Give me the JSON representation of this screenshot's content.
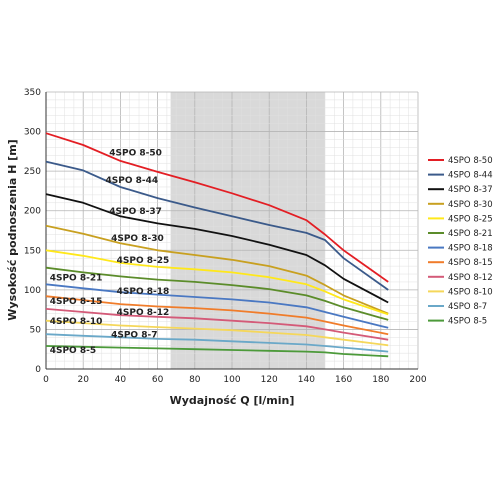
{
  "chart_data": {
    "type": "line",
    "title": "",
    "xlabel": "Wydajność Q [l/min]",
    "ylabel": "Wysokość podnoszenia H [m]",
    "xlim": [
      0,
      200
    ],
    "ylim": [
      0,
      350
    ],
    "x_ticks": [
      0,
      20,
      40,
      60,
      80,
      100,
      120,
      140,
      160,
      180,
      200
    ],
    "y_ticks": [
      0,
      50,
      100,
      150,
      200,
      250,
      300,
      350
    ],
    "x_tick_labels": [
      "0",
      "20",
      "40",
      "60",
      "80",
      "100",
      "120",
      "140",
      "160",
      "180",
      "200"
    ],
    "y_tick_labels": [
      "0",
      "50",
      "100",
      "150",
      "200",
      "250",
      "300",
      "350"
    ],
    "grid": true,
    "shaded_band": {
      "x_from": 67,
      "x_to": 150,
      "color": "#d9d9d9"
    },
    "legend_position": "right",
    "x": [
      0,
      20,
      40,
      60,
      80,
      100,
      120,
      140,
      150,
      160,
      184
    ],
    "series": [
      {
        "name": "4SPO 8-50",
        "color": "#e31e24",
        "values": [
          298,
          283,
          263,
          249,
          236,
          222,
          207,
          188,
          170,
          150,
          110
        ]
      },
      {
        "name": "4SPO 8-44",
        "color": "#3b5a8a",
        "values": [
          262,
          251,
          230,
          216,
          204,
          193,
          182,
          172,
          163,
          140,
          100
        ]
      },
      {
        "name": "4SPO 8-37",
        "color": "#111111",
        "values": [
          221,
          210,
          193,
          184,
          177,
          168,
          157,
          144,
          131,
          114,
          84
        ]
      },
      {
        "name": "4SPO 8-30",
        "color": "#c8a020",
        "values": [
          181,
          171,
          159,
          150,
          144,
          138,
          130,
          118,
          106,
          93,
          70
        ]
      },
      {
        "name": "4SPO 8-25",
        "color": "#ffe81a",
        "values": [
          150,
          143,
          134,
          129,
          126,
          122,
          116,
          107,
          98,
          88,
          69
        ]
      },
      {
        "name": "4SPO 8-21",
        "color": "#5b8c2a",
        "values": [
          128,
          122,
          117,
          113,
          110,
          106,
          101,
          93,
          86,
          78,
          62
        ]
      },
      {
        "name": "4SPO 8-18",
        "color": "#4a78c2",
        "values": [
          107,
          102,
          97,
          94,
          91,
          88,
          84,
          78,
          72,
          66,
          52
        ]
      },
      {
        "name": "4SPO 8-15",
        "color": "#f07c2a",
        "values": [
          92,
          87,
          82,
          79,
          77,
          74,
          70,
          65,
          60,
          55,
          44
        ]
      },
      {
        "name": "4SPO 8-12",
        "color": "#d45a78",
        "values": [
          76,
          72,
          68,
          66,
          64,
          61,
          58,
          54,
          50,
          46,
          37
        ]
      },
      {
        "name": "4SPO 8-10",
        "color": "#f5d75a",
        "values": [
          61,
          58,
          55,
          53,
          51,
          49,
          46,
          43,
          40,
          37,
          30
        ]
      },
      {
        "name": "4SPO 8-7",
        "color": "#6aa8c8",
        "values": [
          44,
          42,
          40,
          38,
          37,
          35,
          33,
          31,
          29,
          27,
          22
        ]
      },
      {
        "name": "4SPO 8-5",
        "color": "#4c9a3a",
        "values": [
          29,
          28,
          27,
          26,
          25,
          24,
          23,
          22,
          21,
          19,
          16
        ]
      }
    ],
    "curve_labels": [
      {
        "text": "4SPO 8-50",
        "x": 34,
        "y": 270
      },
      {
        "text": "4SPO 8-44",
        "x": 32,
        "y": 235
      },
      {
        "text": "4SPO 8-37",
        "x": 34,
        "y": 196
      },
      {
        "text": "4SPO 8-30",
        "x": 35,
        "y": 162
      },
      {
        "text": "4SPO 8-25",
        "x": 38,
        "y": 134
      },
      {
        "text": "4SPO 8-21",
        "x": 2,
        "y": 112
      },
      {
        "text": "4SPO 8-18",
        "x": 38,
        "y": 95
      },
      {
        "text": "4SPO 8-15",
        "x": 2,
        "y": 82
      },
      {
        "text": "4SPO 8-12",
        "x": 38,
        "y": 68
      },
      {
        "text": "4SPO 8-10",
        "x": 2,
        "y": 57
      },
      {
        "text": "4SPO 8-7",
        "x": 35,
        "y": 40
      },
      {
        "text": "4SPO 8-5",
        "x": 2,
        "y": 20
      }
    ]
  }
}
